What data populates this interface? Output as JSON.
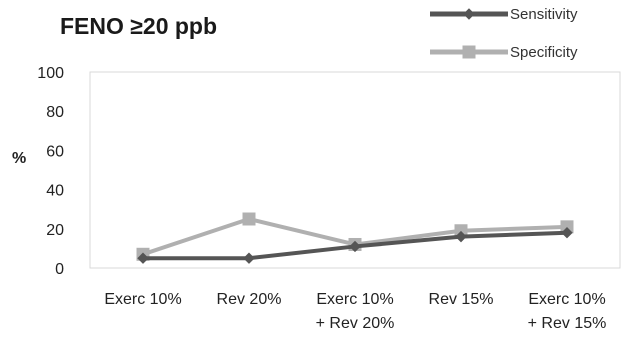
{
  "chart_data": {
    "type": "line",
    "title": "FENO ≥20 ppb",
    "xlabel": "",
    "ylabel": "%",
    "ylim": [
      0,
      100
    ],
    "yticks": [
      0,
      20,
      40,
      60,
      80,
      100
    ],
    "grid": false,
    "legend_position": "top-right",
    "categories": [
      [
        "Exerc 10%"
      ],
      [
        "Rev 20%"
      ],
      [
        "Exerc 10%",
        "+ Rev 20%"
      ],
      [
        "Rev 15%"
      ],
      [
        "Exerc 10%",
        "+ Rev 15%"
      ]
    ],
    "series": [
      {
        "name": "Sensitivity",
        "color": "#555555",
        "marker": "diamond",
        "values": [
          5,
          5,
          11,
          16,
          18
        ]
      },
      {
        "name": "Specificity",
        "color": "#b0b0b0",
        "marker": "square",
        "values": [
          7,
          25,
          12,
          19,
          21
        ]
      }
    ]
  }
}
